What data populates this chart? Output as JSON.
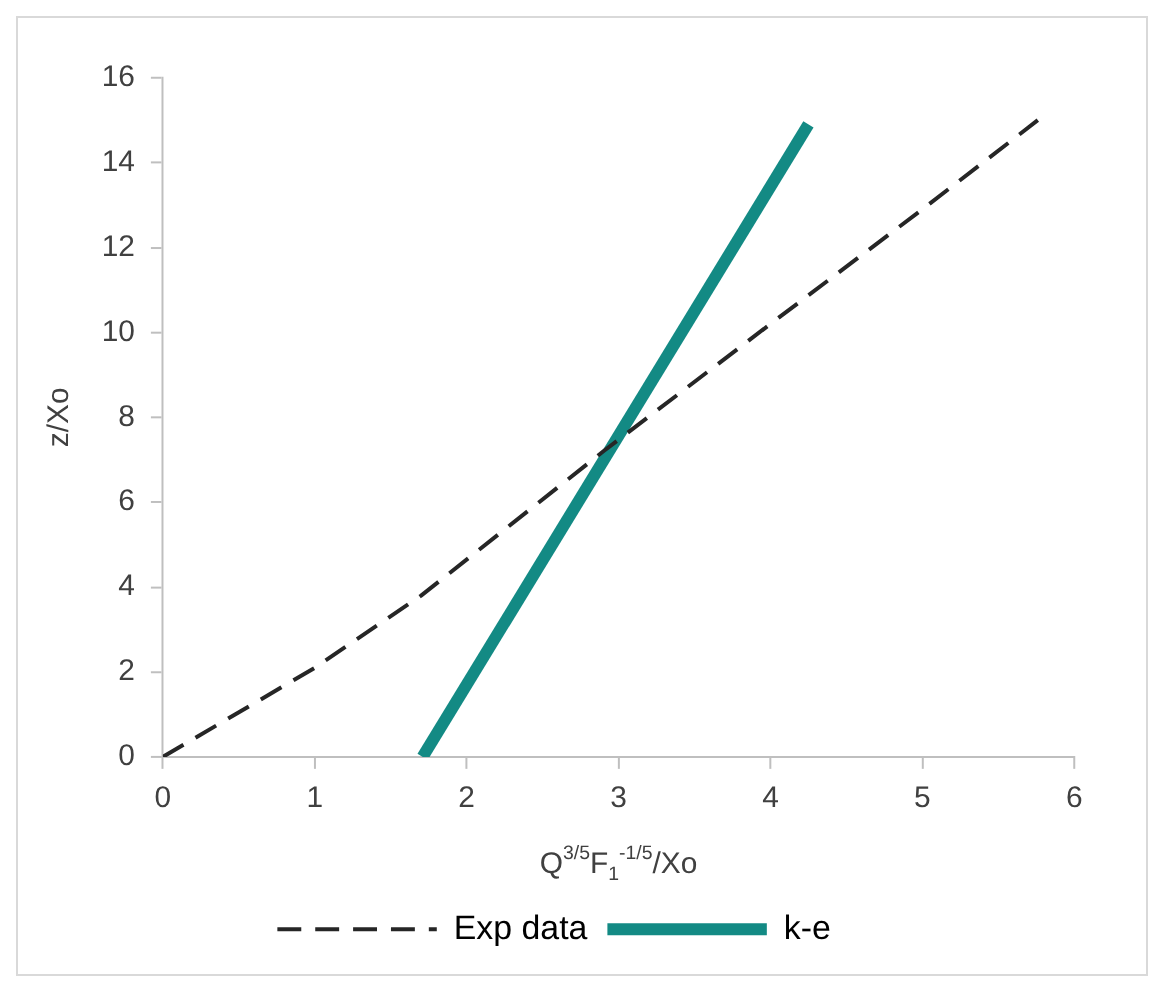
{
  "chart_data": {
    "type": "line",
    "xlabel": "Q$^{3/5}$F$_{1}$$^{-1/5}$/Xo",
    "ylabel": "z/Xo",
    "xlim": [
      0,
      6
    ],
    "xticks": [
      0,
      1,
      2,
      3,
      4,
      5,
      6
    ],
    "ylim": [
      0,
      16
    ],
    "yticks": [
      0,
      2,
      4,
      6,
      8,
      10,
      12,
      14,
      16
    ],
    "grid": false,
    "legend": "bottom",
    "marker": "none",
    "series": [
      {
        "name": "Exp data",
        "color": "#262626",
        "line_style": "dashed",
        "x": [
          0,
          1,
          1.7,
          2.9,
          4,
          5,
          5.76
        ],
        "values": [
          0,
          2.1,
          3.8,
          7.2,
          10.2,
          12.9,
          15
        ]
      },
      {
        "name": "k-e",
        "color": "#138a84",
        "line_style": "solid",
        "x": [
          1.71,
          4.25
        ],
        "values": [
          0,
          14.9
        ]
      }
    ]
  }
}
